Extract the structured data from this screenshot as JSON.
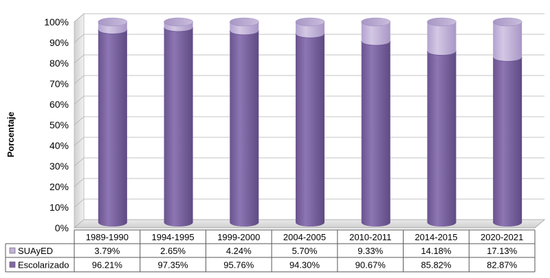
{
  "chart_data": {
    "type": "bar",
    "stacked": true,
    "percent": true,
    "style": "3d-cylinder",
    "ylabel": "Porcentaje",
    "xlabel": "",
    "title": "",
    "ylim": [
      0,
      100
    ],
    "y_ticks": [
      "0%",
      "10%",
      "20%",
      "30%",
      "40%",
      "50%",
      "60%",
      "70%",
      "80%",
      "90%",
      "100%"
    ],
    "categories": [
      "1989-1990",
      "1994-1995",
      "1999-2000",
      "2004-2005",
      "2010-2011",
      "2014-2015",
      "2020-2021"
    ],
    "series": [
      {
        "name": "Escolarizado",
        "color": "#8068a6",
        "values": [
          96.21,
          97.35,
          95.76,
          94.3,
          90.67,
          85.82,
          82.87
        ],
        "labels": [
          "96.21%",
          "97.35%",
          "95.76%",
          "94.30%",
          "90.67%",
          "85.82%",
          "82.87%"
        ]
      },
      {
        "name": "SUAyED",
        "color": "#c2b3d9",
        "values": [
          3.79,
          2.65,
          4.24,
          5.7,
          9.33,
          14.18,
          17.13
        ],
        "labels": [
          "3.79%",
          "2.65%",
          "4.24%",
          "5.70%",
          "9.33%",
          "14.18%",
          "17.13%"
        ]
      }
    ],
    "grid": true,
    "legend": "data-table"
  }
}
